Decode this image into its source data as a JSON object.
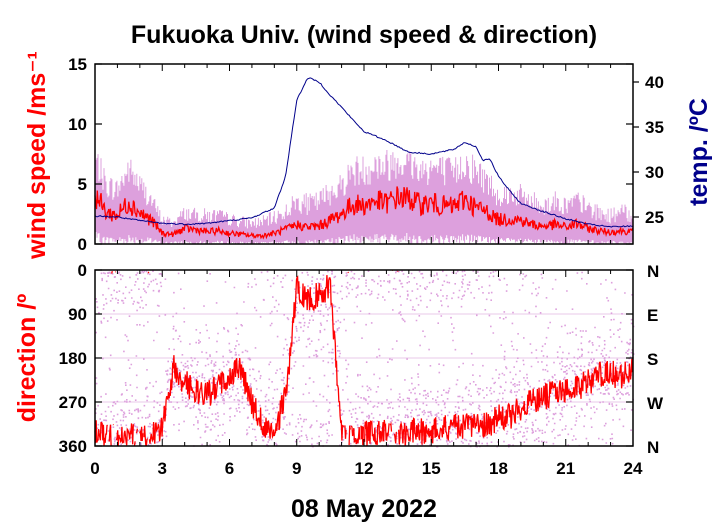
{
  "title": "Fukuoka Univ. (wind speed & direction)",
  "date_label": "08 May 2022",
  "colors": {
    "wind_speed": "#ff0000",
    "wind_speed_raw": "#dda0dd",
    "temperature": "#00008b",
    "direction": "#ff0000",
    "direction_raw": "#dda0dd"
  },
  "chart_data": [
    {
      "type": "line",
      "panel": "wind-speed-temperature",
      "title": "Fukuoka Univ. (wind speed & direction)",
      "xlabel": "08 May 2022",
      "x_ticks": [
        "0",
        "3",
        "6",
        "9",
        "12",
        "15",
        "18",
        "21",
        "24"
      ],
      "xlim": [
        0,
        24
      ],
      "ylabel_left": "wind speed /ms⁻¹",
      "ylim_left": [
        0,
        15
      ],
      "y_ticks_left": [
        "0",
        "5",
        "10",
        "15"
      ],
      "ylabel_right": "temp. /ºC",
      "ylim_right": [
        22,
        42
      ],
      "y_ticks_right": [
        "25",
        "30",
        "35",
        "40"
      ],
      "series": [
        {
          "key": "wind_speed_mean",
          "axis": "left",
          "x": [
            0,
            0.5,
            1,
            1.5,
            2,
            2.5,
            3,
            3.5,
            4,
            4.5,
            5,
            5.5,
            6,
            6.5,
            7,
            7.5,
            8,
            8.5,
            9,
            9.5,
            10,
            10.5,
            11,
            11.5,
            12,
            12.5,
            13,
            13.5,
            14,
            14.5,
            15,
            15.5,
            16,
            16.5,
            17,
            17.5,
            18,
            18.5,
            19,
            19.5,
            20,
            20.5,
            21,
            21.5,
            22,
            22.5,
            23,
            23.5,
            24
          ],
          "values": [
            4.2,
            2.6,
            2.4,
            3.5,
            2.6,
            2.0,
            0.9,
            0.8,
            1.3,
            1.2,
            1.0,
            1.1,
            0.9,
            0.8,
            0.7,
            0.7,
            0.9,
            1.2,
            1.6,
            1.4,
            1.5,
            2.0,
            2.5,
            3.3,
            3.2,
            3.6,
            3.4,
            3.9,
            3.8,
            3.3,
            3.4,
            3.2,
            3.1,
            3.8,
            3.0,
            2.7,
            2.0,
            2.1,
            2.0,
            1.6,
            1.5,
            1.6,
            1.4,
            1.7,
            1.3,
            1.1,
            1.0,
            1.1,
            1.0
          ]
        },
        {
          "key": "wind_speed_max",
          "axis": "left",
          "x": [
            0,
            0.5,
            1,
            1.5,
            2,
            2.5,
            3,
            3.5,
            4,
            4.5,
            5,
            5.5,
            6,
            6.5,
            7,
            7.5,
            8,
            8.5,
            9,
            9.5,
            10,
            10.5,
            11,
            11.5,
            12,
            12.5,
            13,
            13.5,
            14,
            14.5,
            15,
            15.5,
            16,
            16.5,
            17,
            17.5,
            18,
            18.5,
            19,
            19.5,
            20,
            20.5,
            21,
            21.5,
            22,
            22.5,
            23,
            23.5,
            24
          ],
          "values": [
            8.5,
            6,
            5.5,
            7.5,
            6,
            4.5,
            2.5,
            2.2,
            3.2,
            3,
            3,
            3,
            2.6,
            2.4,
            2.2,
            2.4,
            2.8,
            3.4,
            4.5,
            4.2,
            4.5,
            5.5,
            6,
            7.5,
            7.5,
            8,
            8,
            8.5,
            8.2,
            7.5,
            7.8,
            7.5,
            7.2,
            8.2,
            7.5,
            6.5,
            5,
            5.2,
            5,
            4.5,
            4,
            4.5,
            4,
            4.5,
            3.8,
            3.2,
            3,
            3.4,
            3
          ]
        },
        {
          "key": "temperature",
          "axis": "right",
          "x": [
            0,
            1,
            2,
            3,
            4,
            5,
            6,
            7,
            8,
            8.5,
            9,
            9.5,
            10,
            10.5,
            11,
            11.5,
            12,
            13,
            14,
            15,
            16,
            16.5,
            17,
            17.3,
            17.6,
            18,
            18.5,
            19,
            20,
            21,
            22,
            23,
            24
          ],
          "values": [
            25.1,
            25,
            24.6,
            24.3,
            24.2,
            24.3,
            24.6,
            24.9,
            26,
            29.5,
            38,
            40.5,
            40,
            38.5,
            37.2,
            35.8,
            34.5,
            33.5,
            32.2,
            32,
            32.5,
            33.3,
            32.8,
            31.3,
            31.5,
            29.5,
            27.9,
            26.5,
            25.6,
            24.8,
            24.2,
            23.9,
            24
          ]
        }
      ]
    },
    {
      "type": "scatter",
      "panel": "wind-direction",
      "ylabel": "direction /º",
      "xlim": [
        0,
        24
      ],
      "ylim": [
        0,
        360
      ],
      "y_ticks_left": [
        "0",
        "90",
        "180",
        "270",
        "360"
      ],
      "y_ticks_right": [
        "N",
        "E",
        "S",
        "W",
        "N"
      ],
      "x": [
        0,
        0.5,
        1,
        1.5,
        2,
        2.5,
        3,
        3.5,
        4,
        4.5,
        5,
        5.5,
        6,
        6.5,
        7,
        7.5,
        8,
        8.5,
        9,
        9.5,
        10,
        10.5,
        11,
        11.5,
        12,
        12.5,
        13,
        13.5,
        14,
        14.5,
        15,
        15.5,
        16,
        16.5,
        17,
        17.5,
        18,
        18.5,
        19,
        19.5,
        20,
        20.5,
        21,
        21.5,
        22,
        22.5,
        23,
        23.5,
        24
      ],
      "values": [
        330,
        345,
        340,
        338,
        345,
        340,
        320,
        200,
        230,
        250,
        255,
        240,
        220,
        200,
        270,
        320,
        330,
        260,
        40,
        60,
        50,
        30,
        345,
        340,
        335,
        330,
        335,
        340,
        332,
        330,
        330,
        325,
        320,
        322,
        315,
        318,
        300,
        300,
        280,
        270,
        260,
        250,
        245,
        240,
        230,
        215,
        210,
        220,
        200
      ],
      "scatter_band": [
        120,
        120,
        120,
        120,
        120,
        100,
        120,
        120,
        100,
        90,
        90,
        90,
        90,
        90,
        100,
        120,
        120,
        140,
        150,
        160,
        160,
        150,
        150,
        130,
        120,
        120,
        110,
        100,
        100,
        110,
        110,
        110,
        120,
        110,
        110,
        100,
        120,
        130,
        130,
        120,
        120,
        110,
        110,
        110,
        110,
        110,
        110,
        110,
        110
      ]
    }
  ]
}
